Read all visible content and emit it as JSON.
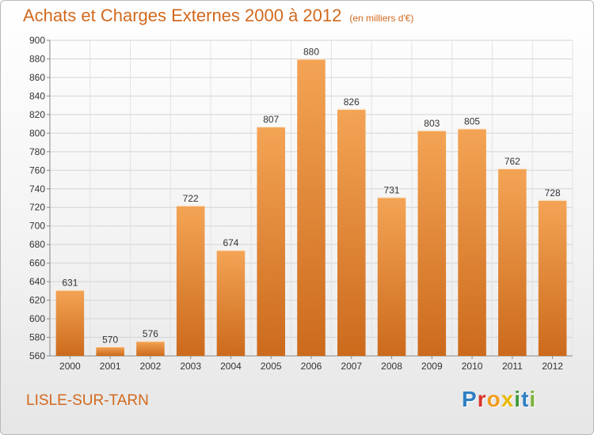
{
  "header": {
    "title": "Achats et Charges Externes 2000 à 2012",
    "subtitle": "(en milliers d'€)"
  },
  "footer": {
    "place": "LISLE-SUR-TARN",
    "logo": [
      "P",
      "r",
      "o",
      "x",
      "i",
      "t",
      "i"
    ]
  },
  "colors": {
    "accent": "#d2691e",
    "bar_light": "#f4a455",
    "bar_dark": "#cc6a1c",
    "logo": [
      "#2f7fc2",
      "#d8342b",
      "#f29b1d",
      "#e8b800",
      "#3d9a3d",
      "#2f7fc2",
      "#7bb33a"
    ]
  },
  "chart_data": {
    "type": "bar",
    "title": "Achats et Charges Externes 2000 à 2012",
    "subtitle": "(en milliers d'€)",
    "categories": [
      "2000",
      "2001",
      "2002",
      "2003",
      "2004",
      "2005",
      "2006",
      "2007",
      "2008",
      "2009",
      "2010",
      "2011",
      "2012"
    ],
    "values": [
      631,
      570,
      576,
      722,
      674,
      807,
      880,
      826,
      731,
      803,
      805,
      762,
      728
    ],
    "ylim": [
      560,
      900
    ],
    "yticks": [
      560,
      580,
      600,
      620,
      640,
      660,
      680,
      700,
      720,
      740,
      760,
      780,
      800,
      820,
      840,
      860,
      880,
      900
    ],
    "xlabel": "",
    "ylabel": "",
    "grid": true
  }
}
